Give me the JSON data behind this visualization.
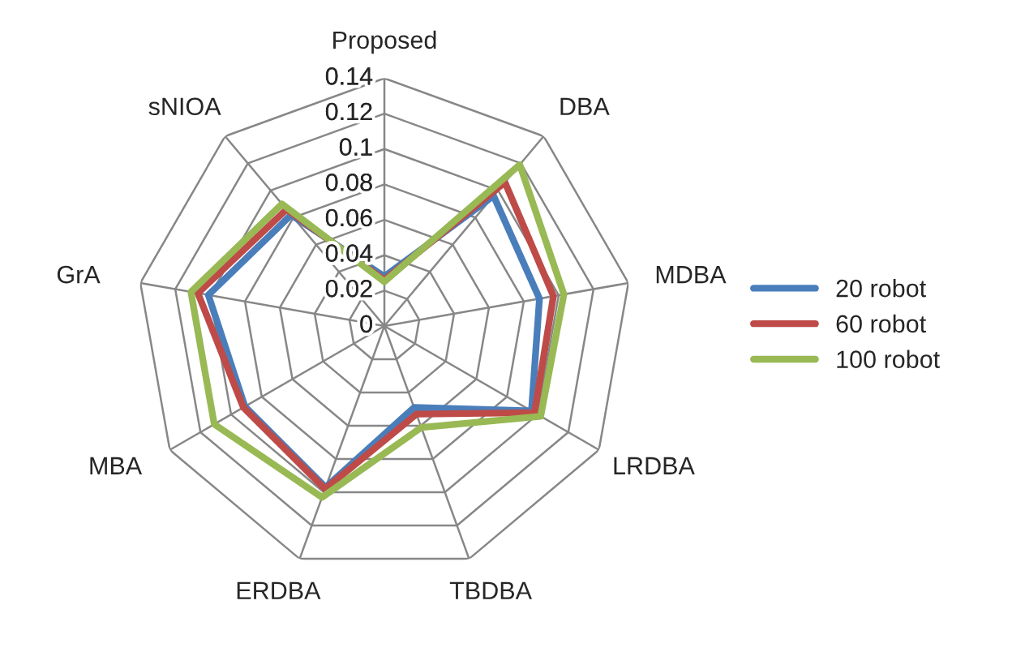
{
  "chart_data": {
    "type": "radar",
    "categories": [
      "Proposed",
      "DBA",
      "MDBA",
      "LRDBA",
      "TBDBA",
      "ERDBA",
      "MBA",
      "GrA",
      "sNIOA"
    ],
    "series": [
      {
        "name": "20 robot",
        "color": "#4a7ebb",
        "values": [
          0.028,
          0.096,
          0.089,
          0.096,
          0.049,
          0.097,
          0.091,
          0.101,
          0.082
        ]
      },
      {
        "name": "60 robot",
        "color": "#be4b48",
        "values": [
          0.026,
          0.106,
          0.097,
          0.098,
          0.053,
          0.098,
          0.092,
          0.107,
          0.086
        ]
      },
      {
        "name": "100 robot",
        "color": "#98b954",
        "values": [
          0.025,
          0.119,
          0.103,
          0.102,
          0.061,
          0.103,
          0.111,
          0.111,
          0.09
        ]
      }
    ],
    "ylim": [
      0,
      0.14
    ],
    "yticks": [
      0,
      0.02,
      0.04,
      0.06,
      0.08,
      {
        "value": 0.1,
        "label": "0.1"
      },
      0.12,
      0.14
    ],
    "grid": true,
    "legend": "right",
    "marker": "none",
    "line_style": "solid"
  }
}
